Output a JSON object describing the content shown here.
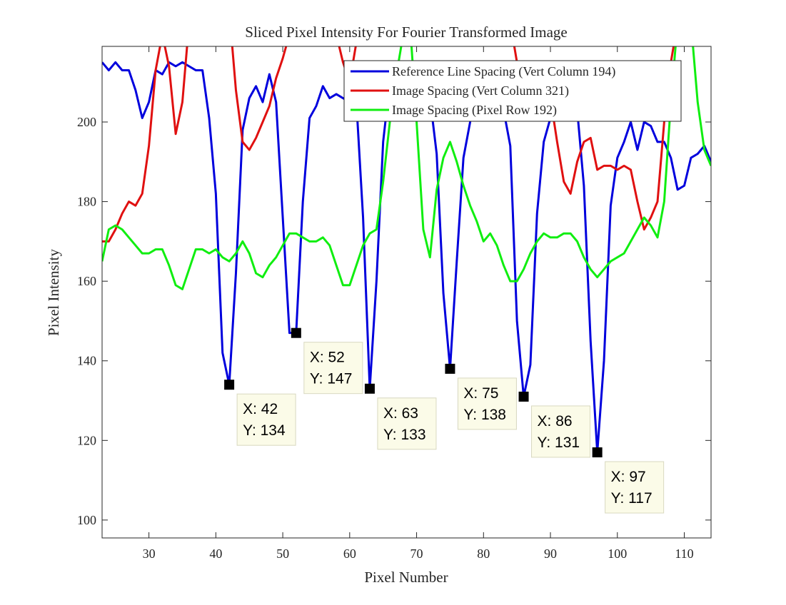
{
  "chart_data": {
    "type": "line",
    "title": "Sliced Pixel Intensity For Fourier Transformed Image",
    "x_label": "Pixel Number",
    "y_label": "Pixel Intensity",
    "x": [
      23,
      24,
      25,
      26,
      27,
      28,
      29,
      30,
      31,
      32,
      33,
      34,
      35,
      36,
      37,
      38,
      39,
      40,
      41,
      42,
      43,
      44,
      45,
      46,
      47,
      48,
      49,
      50,
      51,
      52,
      53,
      54,
      55,
      56,
      57,
      58,
      59,
      60,
      61,
      62,
      63,
      64,
      65,
      66,
      67,
      68,
      69,
      70,
      71,
      72,
      73,
      74,
      75,
      76,
      77,
      78,
      79,
      80,
      81,
      82,
      83,
      84,
      85,
      86,
      87,
      88,
      89,
      90,
      91,
      92,
      93,
      94,
      95,
      96,
      97,
      98,
      99,
      100,
      101,
      102,
      103,
      104,
      105,
      106,
      107,
      108,
      109,
      110,
      111,
      112,
      113,
      114
    ],
    "series": [
      {
        "name": "Reference Line Spacing (Vert Column 194)",
        "color": "#0000dd",
        "values": [
          215,
          213,
          215,
          213,
          213,
          208,
          201,
          205,
          213,
          212,
          215,
          214,
          215,
          214,
          213,
          213,
          201,
          182,
          142,
          134,
          162,
          198,
          206,
          209,
          205,
          212,
          205,
          176,
          147,
          147,
          180,
          201,
          204,
          209,
          206,
          207,
          206,
          205,
          205,
          176,
          133,
          160,
          195,
          210,
          214,
          215,
          215,
          213,
          208,
          206,
          192,
          157,
          138,
          165,
          191,
          200,
          210,
          212,
          213,
          208,
          203,
          194,
          150,
          131,
          139,
          177,
          195,
          201,
          210,
          212,
          211,
          203,
          184,
          145,
          117,
          140,
          179,
          191,
          195,
          200,
          193,
          200,
          199,
          195,
          195,
          191,
          183,
          184,
          191,
          192,
          194,
          190
        ]
      },
      {
        "name": "Image Spacing (Vert Column 321)",
        "color": "#e01010",
        "values": [
          170,
          170,
          173,
          177,
          180,
          179,
          182,
          194,
          213,
          222,
          214,
          197,
          205,
          225,
          228,
          228,
          228,
          228,
          228,
          228,
          208,
          195,
          193,
          196,
          200,
          204,
          211,
          216,
          222,
          228,
          228,
          228,
          228,
          228,
          228,
          222,
          215,
          210,
          220,
          228,
          228,
          228,
          228,
          228,
          228,
          228,
          228,
          228,
          228,
          228,
          228,
          228,
          228,
          228,
          228,
          228,
          228,
          228,
          228,
          228,
          228,
          225,
          215,
          207,
          204,
          203,
          208,
          206,
          195,
          185,
          182,
          190,
          195,
          196,
          188,
          189,
          189,
          188,
          189,
          188,
          180,
          173,
          176,
          180,
          200,
          215,
          225,
          228,
          228,
          228,
          228,
          228
        ]
      },
      {
        "name": "Image Spacing (Pixel Row 192)",
        "color": "#10ee10",
        "values": [
          165,
          173,
          174,
          173,
          171,
          169,
          167,
          167,
          168,
          168,
          164,
          159,
          158,
          163,
          168,
          168,
          167,
          168,
          166,
          165,
          167,
          170,
          167,
          162,
          161,
          164,
          166,
          169,
          172,
          172,
          171,
          170,
          170,
          171,
          169,
          164,
          159,
          159,
          164,
          169,
          172,
          173,
          185,
          200,
          212,
          222,
          225,
          200,
          173,
          166,
          183,
          191,
          195,
          190,
          184,
          179,
          175,
          170,
          172,
          169,
          164,
          160,
          160,
          163,
          167,
          170,
          172,
          171,
          171,
          172,
          172,
          170,
          166,
          163,
          161,
          163,
          165,
          166,
          167,
          170,
          173,
          176,
          174,
          171,
          180,
          205,
          225,
          225,
          225,
          205,
          193,
          189
        ]
      }
    ],
    "xlim": [
      23,
      114
    ],
    "ylim": [
      95.5,
      219
    ],
    "xticks": [
      30,
      40,
      50,
      60,
      70,
      80,
      90,
      100,
      110
    ],
    "yticks": [
      100,
      120,
      140,
      160,
      180,
      200
    ],
    "legend": "northeast",
    "annotations": [
      {
        "x": 42,
        "y": 134,
        "text": [
          "X: 42",
          "Y: 134"
        ]
      },
      {
        "x": 52,
        "y": 147,
        "text": [
          "X: 52",
          "Y: 147"
        ]
      },
      {
        "x": 63,
        "y": 133,
        "text": [
          "X: 63",
          "Y: 133"
        ]
      },
      {
        "x": 75,
        "y": 138,
        "text": [
          "X: 75",
          "Y: 138"
        ]
      },
      {
        "x": 86,
        "y": 131,
        "text": [
          "X: 86",
          "Y: 131"
        ]
      },
      {
        "x": 97,
        "y": 117,
        "text": [
          "X: 97",
          "Y: 117"
        ]
      }
    ]
  }
}
